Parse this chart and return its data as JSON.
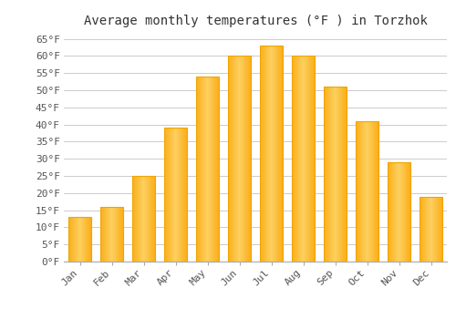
{
  "title": "Average monthly temperatures (°F ) in Torzhok",
  "months": [
    "Jan",
    "Feb",
    "Mar",
    "Apr",
    "May",
    "Jun",
    "Jul",
    "Aug",
    "Sep",
    "Oct",
    "Nov",
    "Dec"
  ],
  "values": [
    13,
    16,
    25,
    39,
    54,
    60,
    63,
    60,
    51,
    41,
    29,
    19
  ],
  "bar_color_main": "#FBAF1B",
  "bar_color_light": "#FDD060",
  "bar_color_edge": "#F0A500",
  "background_color": "#ffffff",
  "grid_color": "#cccccc",
  "ylim": [
    0,
    67
  ],
  "yticks": [
    0,
    5,
    10,
    15,
    20,
    25,
    30,
    35,
    40,
    45,
    50,
    55,
    60,
    65
  ],
  "title_fontsize": 10,
  "tick_fontsize": 8,
  "bar_width": 0.72
}
